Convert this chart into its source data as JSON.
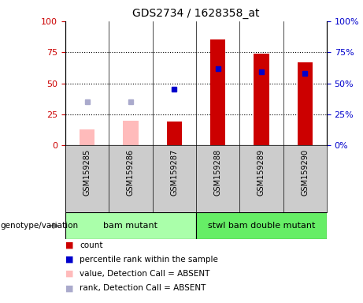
{
  "title": "GDS2734 / 1628358_at",
  "samples": [
    "GSM159285",
    "GSM159286",
    "GSM159287",
    "GSM159288",
    "GSM159289",
    "GSM159290"
  ],
  "count_values": [
    null,
    null,
    19,
    85,
    74,
    67
  ],
  "count_absent_values": [
    13,
    20,
    null,
    null,
    null,
    null
  ],
  "rank_values": [
    null,
    null,
    45,
    62,
    59,
    58
  ],
  "rank_absent_values": [
    35,
    35,
    null,
    null,
    null,
    null
  ],
  "ylim": [
    0,
    100
  ],
  "groups": [
    {
      "label": "bam mutant",
      "start": 0,
      "end": 2,
      "color": "#aaffaa"
    },
    {
      "label": "stwl bam double mutant",
      "start": 3,
      "end": 5,
      "color": "#66ee66"
    }
  ],
  "bar_width": 0.35,
  "count_color": "#cc0000",
  "count_absent_color": "#ffbbbb",
  "rank_color": "#0000cc",
  "rank_absent_color": "#aaaacc",
  "yticks": [
    0,
    25,
    50,
    75,
    100
  ],
  "ytick_labels_left": [
    "0",
    "25",
    "50",
    "75",
    "100"
  ],
  "ytick_labels_right": [
    "0%",
    "25%",
    "50%",
    "75%",
    "100%"
  ],
  "legend_items": [
    {
      "label": "count",
      "color": "#cc0000"
    },
    {
      "label": "percentile rank within the sample",
      "color": "#0000cc"
    },
    {
      "label": "value, Detection Call = ABSENT",
      "color": "#ffbbbb"
    },
    {
      "label": "rank, Detection Call = ABSENT",
      "color": "#aaaacc"
    }
  ],
  "group_label": "genotype/variation",
  "sample_bg_color": "#cccccc",
  "group_bg_color_1": "#aaffaa",
  "group_bg_color_2": "#66ee66"
}
